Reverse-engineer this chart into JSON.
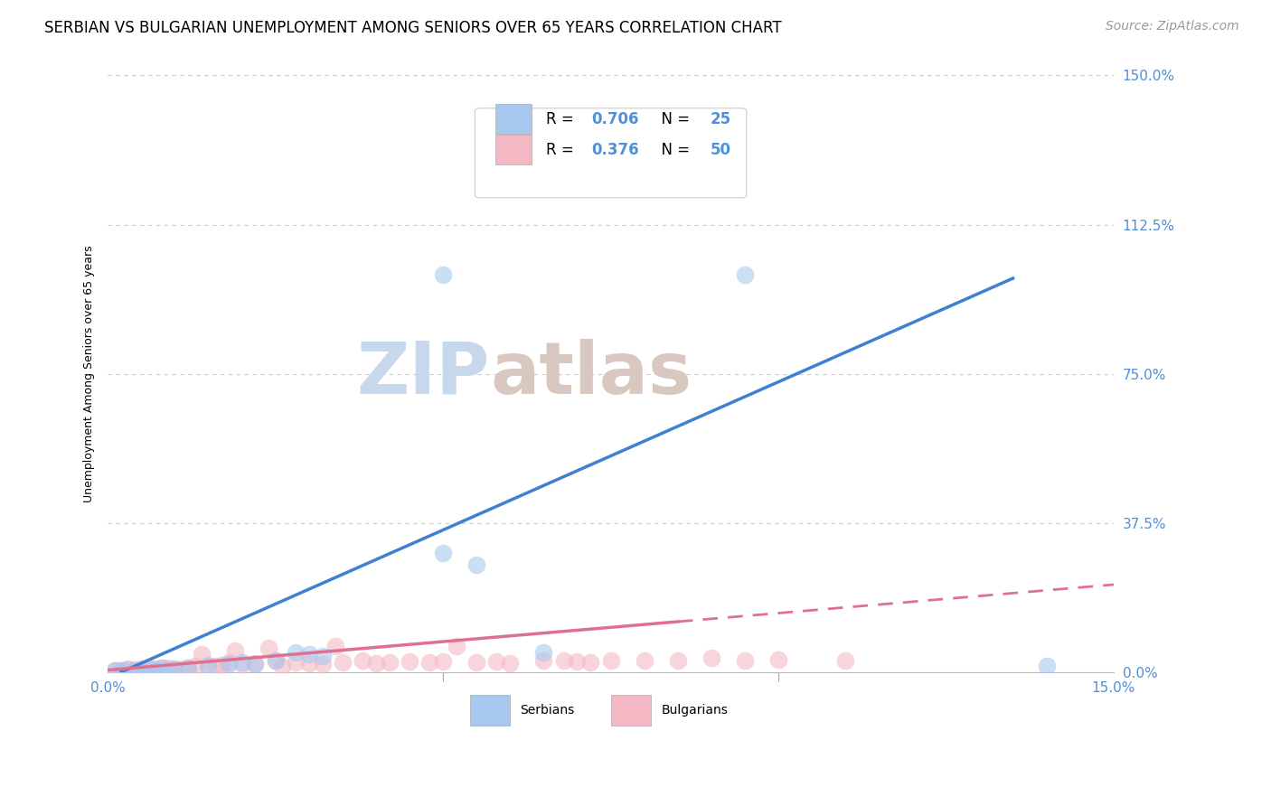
{
  "title": "SERBIAN VS BULGARIAN UNEMPLOYMENT AMONG SENIORS OVER 65 YEARS CORRELATION CHART",
  "source": "Source: ZipAtlas.com",
  "xlim": [
    0.0,
    0.15
  ],
  "ylim": [
    0.0,
    1.5
  ],
  "ytick_vals": [
    0.0,
    0.375,
    0.75,
    1.125,
    1.5
  ],
  "ytick_labels": [
    "0.0%",
    "37.5%",
    "75.0%",
    "112.5%",
    "150.0%"
  ],
  "xtick_vals": [
    0.0,
    0.15
  ],
  "xtick_labels": [
    "0.0%",
    "15.0%"
  ],
  "watermark_zip": "ZIP",
  "watermark_atlas": "atlas",
  "serbian_color": "#a8c8f0",
  "bulgarian_color": "#f4b8c4",
  "serbian_line_color": "#4080d0",
  "bulgarian_line_color": "#e07090",
  "tick_color": "#5090d8",
  "serbian_scatter": {
    "x": [
      0.001,
      0.002,
      0.003,
      0.004,
      0.005,
      0.006,
      0.007,
      0.008,
      0.009,
      0.01,
      0.012,
      0.015,
      0.018,
      0.02,
      0.022,
      0.025,
      0.028,
      0.03,
      0.032,
      0.05,
      0.055,
      0.065,
      0.095,
      0.14,
      0.05
    ],
    "y": [
      0.005,
      0.005,
      0.007,
      0.005,
      0.007,
      0.008,
      0.006,
      0.01,
      0.007,
      0.008,
      0.01,
      0.015,
      0.02,
      0.025,
      0.02,
      0.03,
      0.05,
      0.045,
      0.04,
      1.0,
      0.27,
      0.05,
      1.0,
      0.015,
      0.3
    ]
  },
  "bulgarian_scatter": {
    "x": [
      0.001,
      0.002,
      0.003,
      0.004,
      0.005,
      0.006,
      0.007,
      0.008,
      0.009,
      0.01,
      0.011,
      0.012,
      0.013,
      0.015,
      0.016,
      0.017,
      0.018,
      0.02,
      0.022,
      0.025,
      0.028,
      0.03,
      0.032,
      0.035,
      0.038,
      0.04,
      0.042,
      0.045,
      0.048,
      0.05,
      0.055,
      0.06,
      0.065,
      0.07,
      0.072,
      0.075,
      0.08,
      0.085,
      0.09,
      0.095,
      0.1,
      0.11,
      0.014,
      0.019,
      0.024,
      0.026,
      0.034,
      0.052,
      0.058,
      0.068
    ],
    "y": [
      0.005,
      0.005,
      0.008,
      0.006,
      0.008,
      0.01,
      0.008,
      0.01,
      0.01,
      0.007,
      0.008,
      0.01,
      0.015,
      0.018,
      0.015,
      0.018,
      0.025,
      0.02,
      0.022,
      0.028,
      0.025,
      0.022,
      0.02,
      0.025,
      0.028,
      0.022,
      0.024,
      0.026,
      0.024,
      0.026,
      0.024,
      0.022,
      0.028,
      0.026,
      0.024,
      0.028,
      0.028,
      0.03,
      0.035,
      0.028,
      0.032,
      0.028,
      0.045,
      0.055,
      0.06,
      0.016,
      0.065,
      0.065,
      0.026,
      0.03
    ]
  },
  "serbian_line": {
    "x0": 0.002,
    "x1": 0.135,
    "y0": 0.0,
    "y1": 0.99
  },
  "bulgarian_line": {
    "x0": 0.0,
    "x1": 0.15,
    "y0": 0.005,
    "y1": 0.22
  },
  "bulgarian_line_solid_end": 0.085,
  "grid_color": "#cccccc",
  "background_color": "#ffffff",
  "title_fontsize": 12,
  "source_fontsize": 10,
  "axis_label_fontsize": 9,
  "tick_fontsize": 11,
  "watermark_fontsize_zip": 58,
  "watermark_fontsize_atlas": 58
}
